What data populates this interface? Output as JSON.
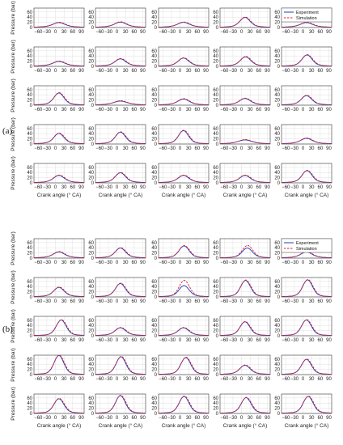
{
  "figure": {
    "panel_labels": [
      "(a)",
      "(b)"
    ],
    "xlabel": "Crank angle (° CA)",
    "ylabel": "Pressure (bar)",
    "x_ticks": [
      -60,
      -30,
      0,
      30,
      60,
      90
    ],
    "x_tick_labels": [
      "−60",
      "−30",
      "0",
      "30",
      "60",
      "90"
    ],
    "y_ticks": [
      0,
      20,
      40,
      60
    ],
    "y_tick_labels": [
      "0",
      "20",
      "40",
      "60"
    ],
    "legend": {
      "experiment": "Experiment",
      "simulation": "Simulation",
      "placement": "top-right"
    },
    "colors": {
      "experiment": "#1f3fbf",
      "simulation": "#e0202a"
    }
  },
  "chart_data": {
    "type": "line",
    "subplot_grid": "5x5 per panel, 2 panels",
    "xlim": [
      -75,
      100
    ],
    "ylim": [
      0,
      75
    ],
    "x": [
      -75,
      -60,
      -45,
      -30,
      -20,
      -10,
      0,
      10,
      20,
      30,
      40,
      50,
      60,
      75,
      90,
      100
    ],
    "series_names": [
      "Experiment",
      "Simulation"
    ],
    "panels": [
      {
        "label": "(a)",
        "subplots": [
          {
            "peak": 15,
            "peak_ca": 12
          },
          {
            "peak": 17,
            "peak_ca": 12
          },
          {
            "peak": 16,
            "peak_ca": 12
          },
          {
            "peak": 35,
            "peak_ca": 12
          },
          {
            "peak": 15,
            "peak_ca": 12
          },
          {
            "peak": 15,
            "peak_ca": 12
          },
          {
            "peak": 25,
            "peak_ca": 12
          },
          {
            "peak": 28,
            "peak_ca": 12
          },
          {
            "peak": 33,
            "peak_ca": 14
          },
          {
            "peak": 40,
            "peak_ca": 14
          },
          {
            "peak": 43,
            "peak_ca": 12
          },
          {
            "peak": 12,
            "peak_ca": 12
          },
          {
            "peak": 20,
            "peak_ca": 12
          },
          {
            "peak": 22,
            "peak_ca": 12
          },
          {
            "peak": 33,
            "peak_ca": 12
          },
          {
            "peak": 37,
            "peak_ca": 12
          },
          {
            "peak": 42,
            "peak_ca": 12
          },
          {
            "peak": 48,
            "peak_ca": 12
          },
          {
            "peak": 12,
            "peak_ca": 12
          },
          {
            "peak": 18,
            "peak_ca": 12
          },
          {
            "peak": 25,
            "peak_ca": 12
          },
          {
            "peak": 35,
            "peak_ca": 12
          },
          {
            "peak": 25,
            "peak_ca": 12
          },
          {
            "peak": 25,
            "peak_ca": 12
          },
          {
            "peak": 43,
            "peak_ca": 14
          }
        ]
      },
      {
        "label": "(b)",
        "subplots": [
          {
            "peak": 20,
            "peak_ca": 12
          },
          {
            "peak": 35,
            "peak_ca": 12
          },
          {
            "peak": 43,
            "peak_ca": 14
          },
          {
            "peak": 35,
            "peak_ca": 20,
            "sim_peak": 45
          },
          {
            "peak": 20,
            "peak_ca": 12
          },
          {
            "peak": 33,
            "peak_ca": 12
          },
          {
            "peak": 48,
            "peak_ca": 12
          },
          {
            "peak": 40,
            "peak_ca": 14,
            "sim_peak": 60
          },
          {
            "peak": 60,
            "peak_ca": 14
          },
          {
            "peak": 62,
            "peak_ca": 16
          },
          {
            "peak": 57,
            "peak_ca": 20
          },
          {
            "peak": 27,
            "peak_ca": 12
          },
          {
            "peak": 27,
            "peak_ca": 12
          },
          {
            "peak": 50,
            "peak_ca": 12
          },
          {
            "peak": 57,
            "peak_ca": 12
          },
          {
            "peak": 70,
            "peak_ca": 12
          },
          {
            "peak": 65,
            "peak_ca": 14
          },
          {
            "peak": 62,
            "peak_ca": 20
          },
          {
            "peak": 32,
            "peak_ca": 12
          },
          {
            "peak": 55,
            "peak_ca": 12
          },
          {
            "peak": 53,
            "peak_ca": 12
          },
          {
            "peak": 65,
            "peak_ca": 12
          },
          {
            "peak": 62,
            "peak_ca": 14
          },
          {
            "peak": 57,
            "peak_ca": 16
          },
          {
            "peak": 62,
            "peak_ca": 18
          }
        ]
      }
    ]
  }
}
